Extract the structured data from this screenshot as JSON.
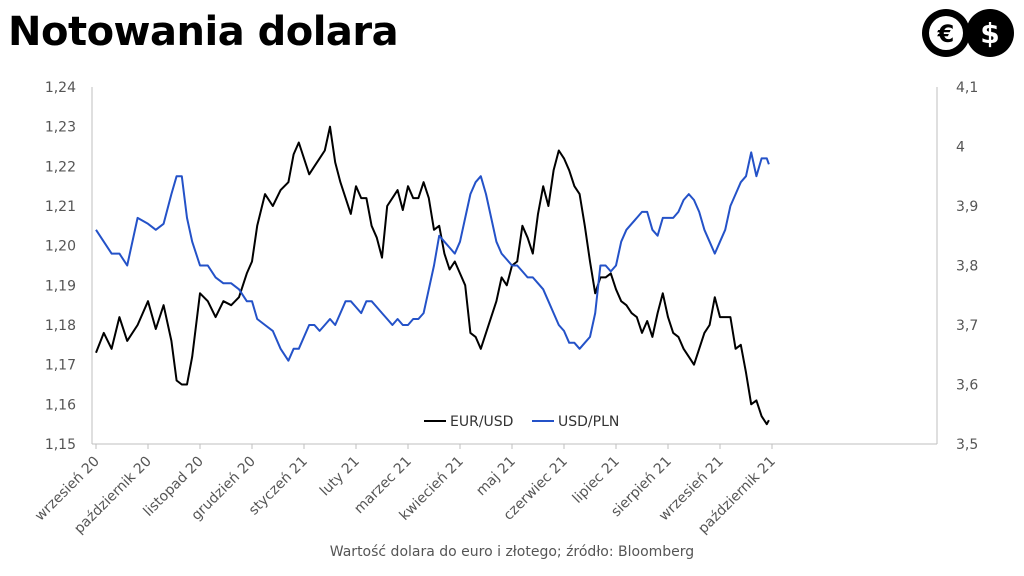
{
  "page": {
    "title": "Notowania dolara",
    "caption": "Wartość dolara do euro i złotego; źródło: Bloomberg",
    "logo": {
      "icon_left": "euro-icon",
      "icon_right": "dollar-icon",
      "glyph_left": "€",
      "glyph_right": "$"
    }
  },
  "chart_data": {
    "type": "line",
    "x_ticks": [
      "wrzesień 20",
      "październik 20",
      "listopad 20",
      "grudzień 20",
      "styczeń 21",
      "luty 21",
      "marzec 21",
      "kwiecień 21",
      "maj 21",
      "czerwiec 21",
      "lipiec 21",
      "sierpień 21",
      "wrzesień 21",
      "październik 21"
    ],
    "y_left": {
      "range": [
        1.15,
        1.24
      ],
      "ticks": [
        "1,15",
        "1,16",
        "1,17",
        "1,18",
        "1,19",
        "1,20",
        "1,21",
        "1,22",
        "1,23",
        "1,24"
      ]
    },
    "y_right": {
      "range": [
        3.5,
        4.1
      ],
      "ticks": [
        "3,5",
        "3,6",
        "3,7",
        "3,8",
        "3,9",
        "4",
        "4,1"
      ]
    },
    "grid": false,
    "legend_position": "bottom-center",
    "series": [
      {
        "name": "EUR/USD",
        "axis": "left",
        "color": "#000000",
        "points": [
          [
            0.0,
            1.173
          ],
          [
            0.15,
            1.178
          ],
          [
            0.3,
            1.174
          ],
          [
            0.45,
            1.182
          ],
          [
            0.6,
            1.176
          ],
          [
            0.8,
            1.18
          ],
          [
            1.0,
            1.186
          ],
          [
            1.15,
            1.179
          ],
          [
            1.3,
            1.185
          ],
          [
            1.45,
            1.176
          ],
          [
            1.55,
            1.166
          ],
          [
            1.65,
            1.165
          ],
          [
            1.75,
            1.165
          ],
          [
            1.85,
            1.172
          ],
          [
            2.0,
            1.188
          ],
          [
            2.15,
            1.186
          ],
          [
            2.3,
            1.182
          ],
          [
            2.45,
            1.186
          ],
          [
            2.6,
            1.185
          ],
          [
            2.75,
            1.187
          ],
          [
            2.9,
            1.193
          ],
          [
            3.0,
            1.196
          ],
          [
            3.1,
            1.205
          ],
          [
            3.25,
            1.213
          ],
          [
            3.4,
            1.21
          ],
          [
            3.55,
            1.214
          ],
          [
            3.7,
            1.216
          ],
          [
            3.8,
            1.223
          ],
          [
            3.9,
            1.226
          ],
          [
            4.0,
            1.222
          ],
          [
            4.1,
            1.218
          ],
          [
            4.2,
            1.22
          ],
          [
            4.3,
            1.222
          ],
          [
            4.4,
            1.224
          ],
          [
            4.5,
            1.23
          ],
          [
            4.6,
            1.221
          ],
          [
            4.7,
            1.216
          ],
          [
            4.8,
            1.212
          ],
          [
            4.9,
            1.208
          ],
          [
            5.0,
            1.215
          ],
          [
            5.1,
            1.212
          ],
          [
            5.2,
            1.212
          ],
          [
            5.3,
            1.205
          ],
          [
            5.4,
            1.202
          ],
          [
            5.5,
            1.197
          ],
          [
            5.6,
            1.21
          ],
          [
            5.7,
            1.212
          ],
          [
            5.8,
            1.214
          ],
          [
            5.9,
            1.209
          ],
          [
            6.0,
            1.215
          ],
          [
            6.1,
            1.212
          ],
          [
            6.2,
            1.212
          ],
          [
            6.3,
            1.216
          ],
          [
            6.4,
            1.212
          ],
          [
            6.5,
            1.204
          ],
          [
            6.6,
            1.205
          ],
          [
            6.7,
            1.198
          ],
          [
            6.8,
            1.194
          ],
          [
            6.9,
            1.196
          ],
          [
            7.0,
            1.193
          ],
          [
            7.1,
            1.19
          ],
          [
            7.2,
            1.178
          ],
          [
            7.3,
            1.177
          ],
          [
            7.4,
            1.174
          ],
          [
            7.5,
            1.178
          ],
          [
            7.6,
            1.182
          ],
          [
            7.7,
            1.186
          ],
          [
            7.8,
            1.192
          ],
          [
            7.9,
            1.19
          ],
          [
            8.0,
            1.195
          ],
          [
            8.1,
            1.196
          ],
          [
            8.2,
            1.205
          ],
          [
            8.3,
            1.202
          ],
          [
            8.4,
            1.198
          ],
          [
            8.5,
            1.208
          ],
          [
            8.6,
            1.215
          ],
          [
            8.7,
            1.21
          ],
          [
            8.8,
            1.219
          ],
          [
            8.9,
            1.224
          ],
          [
            9.0,
            1.222
          ],
          [
            9.1,
            1.219
          ],
          [
            9.2,
            1.215
          ],
          [
            9.3,
            1.213
          ],
          [
            9.4,
            1.205
          ],
          [
            9.5,
            1.196
          ],
          [
            9.6,
            1.188
          ],
          [
            9.7,
            1.192
          ],
          [
            9.8,
            1.192
          ],
          [
            9.9,
            1.193
          ],
          [
            10.0,
            1.189
          ],
          [
            10.1,
            1.186
          ],
          [
            10.2,
            1.185
          ],
          [
            10.3,
            1.183
          ],
          [
            10.4,
            1.182
          ],
          [
            10.5,
            1.178
          ],
          [
            10.6,
            1.181
          ],
          [
            10.7,
            1.177
          ],
          [
            10.8,
            1.183
          ],
          [
            10.9,
            1.188
          ],
          [
            11.0,
            1.182
          ],
          [
            11.1,
            1.178
          ],
          [
            11.2,
            1.177
          ],
          [
            11.3,
            1.174
          ],
          [
            11.4,
            1.172
          ],
          [
            11.5,
            1.17
          ],
          [
            11.6,
            1.174
          ],
          [
            11.7,
            1.178
          ],
          [
            11.8,
            1.18
          ],
          [
            11.9,
            1.187
          ],
          [
            12.0,
            1.182
          ],
          [
            12.1,
            1.182
          ],
          [
            12.2,
            1.182
          ],
          [
            12.3,
            1.174
          ],
          [
            12.4,
            1.175
          ],
          [
            12.5,
            1.168
          ],
          [
            12.6,
            1.16
          ],
          [
            12.7,
            1.161
          ],
          [
            12.8,
            1.157
          ],
          [
            12.9,
            1.155
          ],
          [
            12.94,
            1.156
          ]
        ]
      },
      {
        "name": "USD/PLN",
        "axis": "right",
        "color": "#2452c8",
        "points": [
          [
            0.0,
            3.86
          ],
          [
            0.15,
            3.84
          ],
          [
            0.3,
            3.82
          ],
          [
            0.45,
            3.82
          ],
          [
            0.6,
            3.8
          ],
          [
            0.8,
            3.88
          ],
          [
            1.0,
            3.87
          ],
          [
            1.15,
            3.86
          ],
          [
            1.3,
            3.87
          ],
          [
            1.45,
            3.92
          ],
          [
            1.55,
            3.95
          ],
          [
            1.65,
            3.95
          ],
          [
            1.75,
            3.88
          ],
          [
            1.85,
            3.84
          ],
          [
            2.0,
            3.8
          ],
          [
            2.15,
            3.8
          ],
          [
            2.3,
            3.78
          ],
          [
            2.45,
            3.77
          ],
          [
            2.6,
            3.77
          ],
          [
            2.75,
            3.76
          ],
          [
            2.9,
            3.74
          ],
          [
            3.0,
            3.74
          ],
          [
            3.1,
            3.71
          ],
          [
            3.25,
            3.7
          ],
          [
            3.4,
            3.69
          ],
          [
            3.55,
            3.66
          ],
          [
            3.7,
            3.64
          ],
          [
            3.8,
            3.66
          ],
          [
            3.9,
            3.66
          ],
          [
            4.0,
            3.68
          ],
          [
            4.1,
            3.7
          ],
          [
            4.2,
            3.7
          ],
          [
            4.3,
            3.69
          ],
          [
            4.4,
            3.7
          ],
          [
            4.5,
            3.71
          ],
          [
            4.6,
            3.7
          ],
          [
            4.7,
            3.72
          ],
          [
            4.8,
            3.74
          ],
          [
            4.9,
            3.74
          ],
          [
            5.0,
            3.73
          ],
          [
            5.1,
            3.72
          ],
          [
            5.2,
            3.74
          ],
          [
            5.3,
            3.74
          ],
          [
            5.4,
            3.73
          ],
          [
            5.5,
            3.72
          ],
          [
            5.6,
            3.71
          ],
          [
            5.7,
            3.7
          ],
          [
            5.8,
            3.71
          ],
          [
            5.9,
            3.7
          ],
          [
            6.0,
            3.7
          ],
          [
            6.1,
            3.71
          ],
          [
            6.2,
            3.71
          ],
          [
            6.3,
            3.72
          ],
          [
            6.4,
            3.76
          ],
          [
            6.5,
            3.8
          ],
          [
            6.6,
            3.85
          ],
          [
            6.7,
            3.84
          ],
          [
            6.8,
            3.83
          ],
          [
            6.9,
            3.82
          ],
          [
            7.0,
            3.84
          ],
          [
            7.1,
            3.88
          ],
          [
            7.2,
            3.92
          ],
          [
            7.3,
            3.94
          ],
          [
            7.4,
            3.95
          ],
          [
            7.5,
            3.92
          ],
          [
            7.6,
            3.88
          ],
          [
            7.7,
            3.84
          ],
          [
            7.8,
            3.82
          ],
          [
            7.9,
            3.81
          ],
          [
            8.0,
            3.8
          ],
          [
            8.1,
            3.8
          ],
          [
            8.2,
            3.79
          ],
          [
            8.3,
            3.78
          ],
          [
            8.4,
            3.78
          ],
          [
            8.5,
            3.77
          ],
          [
            8.6,
            3.76
          ],
          [
            8.7,
            3.74
          ],
          [
            8.8,
            3.72
          ],
          [
            8.9,
            3.7
          ],
          [
            9.0,
            3.69
          ],
          [
            9.1,
            3.67
          ],
          [
            9.2,
            3.67
          ],
          [
            9.3,
            3.66
          ],
          [
            9.4,
            3.67
          ],
          [
            9.5,
            3.68
          ],
          [
            9.6,
            3.72
          ],
          [
            9.7,
            3.8
          ],
          [
            9.8,
            3.8
          ],
          [
            9.9,
            3.79
          ],
          [
            10.0,
            3.8
          ],
          [
            10.1,
            3.84
          ],
          [
            10.2,
            3.86
          ],
          [
            10.3,
            3.87
          ],
          [
            10.4,
            3.88
          ],
          [
            10.5,
            3.89
          ],
          [
            10.6,
            3.89
          ],
          [
            10.7,
            3.86
          ],
          [
            10.8,
            3.85
          ],
          [
            10.9,
            3.88
          ],
          [
            11.0,
            3.88
          ],
          [
            11.1,
            3.88
          ],
          [
            11.2,
            3.89
          ],
          [
            11.3,
            3.91
          ],
          [
            11.4,
            3.92
          ],
          [
            11.5,
            3.91
          ],
          [
            11.6,
            3.89
          ],
          [
            11.7,
            3.86
          ],
          [
            11.8,
            3.84
          ],
          [
            11.9,
            3.82
          ],
          [
            12.0,
            3.84
          ],
          [
            12.1,
            3.86
          ],
          [
            12.2,
            3.9
          ],
          [
            12.3,
            3.92
          ],
          [
            12.4,
            3.94
          ],
          [
            12.5,
            3.95
          ],
          [
            12.6,
            3.99
          ],
          [
            12.7,
            3.95
          ],
          [
            12.8,
            3.98
          ],
          [
            12.9,
            3.98
          ],
          [
            12.94,
            3.97
          ]
        ]
      }
    ]
  }
}
